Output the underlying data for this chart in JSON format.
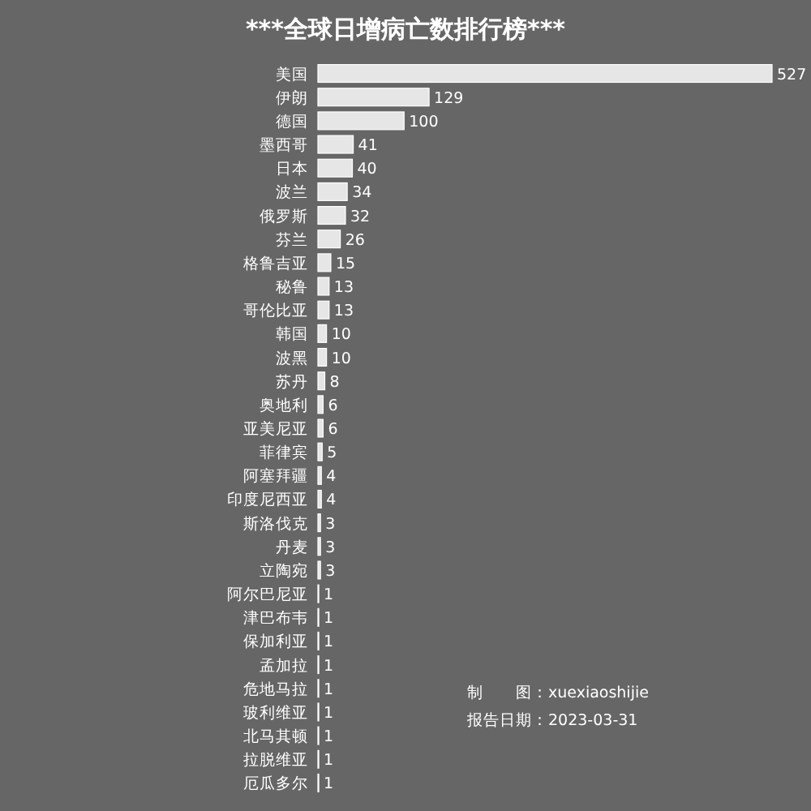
{
  "chart_data": {
    "type": "bar",
    "orientation": "horizontal",
    "title": "***全球日增病亡数排行榜***",
    "categories": [
      "美国",
      "伊朗",
      "德国",
      "墨西哥",
      "日本",
      "波兰",
      "俄罗斯",
      "芬兰",
      "格鲁吉亚",
      "秘鲁",
      "哥伦比亚",
      "韩国",
      "波黑",
      "苏丹",
      "奥地利",
      "亚美尼亚",
      "菲律宾",
      "阿塞拜疆",
      "印度尼西亚",
      "斯洛伐克",
      "丹麦",
      "立陶宛",
      "阿尔巴尼亚",
      "津巴布韦",
      "保加利亚",
      "孟加拉",
      "危地马拉",
      "玻利维亚",
      "北马其顿",
      "拉脱维亚",
      "厄瓜多尔"
    ],
    "values": [
      527,
      129,
      100,
      41,
      40,
      34,
      32,
      26,
      15,
      13,
      13,
      10,
      10,
      8,
      6,
      6,
      5,
      4,
      4,
      3,
      3,
      3,
      1,
      1,
      1,
      1,
      1,
      1,
      1,
      1,
      1
    ],
    "color": "#e6e6e6",
    "data_labels": true,
    "annotations": [
      "制　　图：xuexiaoshijie",
      "报告日期：2023-03-31"
    ]
  }
}
